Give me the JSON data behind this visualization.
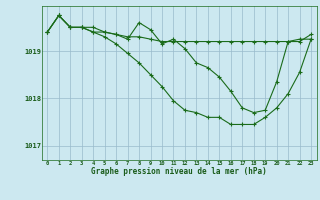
{
  "bg_color": "#cce8f0",
  "plot_bg_color": "#cce8f0",
  "grid_color": "#99bbcc",
  "line_color": "#1a6b1a",
  "marker_color": "#1a6b1a",
  "xlabel": "Graphe pression niveau de la mer (hPa)",
  "xlabel_color": "#1a5c1a",
  "xlim": [
    -0.5,
    23.5
  ],
  "ylim": [
    1016.7,
    1019.95
  ],
  "yticks": [
    1017,
    1018,
    1019
  ],
  "xticks": [
    0,
    1,
    2,
    3,
    4,
    5,
    6,
    7,
    8,
    9,
    10,
    11,
    12,
    13,
    14,
    15,
    16,
    17,
    18,
    19,
    20,
    21,
    22,
    23
  ],
  "series1_x": [
    0,
    1,
    2,
    3,
    4,
    5,
    6,
    7,
    8,
    9,
    10,
    11,
    12,
    13,
    14,
    15,
    16,
    17,
    18,
    19,
    20,
    21,
    22,
    23
  ],
  "series1_y": [
    1019.4,
    1019.75,
    1019.5,
    1019.5,
    1019.5,
    1019.4,
    1019.35,
    1019.3,
    1019.3,
    1019.25,
    1019.2,
    1019.2,
    1019.2,
    1019.2,
    1019.2,
    1019.2,
    1019.2,
    1019.2,
    1019.2,
    1019.2,
    1019.2,
    1019.2,
    1019.2,
    1019.35
  ],
  "series2_x": [
    0,
    1,
    2,
    3,
    4,
    5,
    6,
    7,
    8,
    9,
    10,
    11,
    12,
    13,
    14,
    15,
    16,
    17,
    18,
    19,
    20,
    21,
    22,
    23
  ],
  "series2_y": [
    1019.4,
    1019.75,
    1019.5,
    1019.5,
    1019.4,
    1019.4,
    1019.35,
    1019.25,
    1019.6,
    1019.45,
    1019.15,
    1019.25,
    1019.05,
    1018.75,
    1018.65,
    1018.45,
    1018.15,
    1017.8,
    1017.7,
    1017.75,
    1018.35,
    1019.2,
    1019.25,
    1019.25
  ],
  "series3_x": [
    0,
    1,
    2,
    3,
    4,
    5,
    6,
    7,
    8,
    9,
    10,
    11,
    12,
    13,
    14,
    15,
    16,
    17,
    18,
    19,
    20,
    21,
    22,
    23
  ],
  "series3_y": [
    1019.4,
    1019.75,
    1019.5,
    1019.5,
    1019.4,
    1019.3,
    1019.15,
    1018.95,
    1018.75,
    1018.5,
    1018.25,
    1017.95,
    1017.75,
    1017.7,
    1017.6,
    1017.6,
    1017.45,
    1017.45,
    1017.45,
    1017.6,
    1017.8,
    1018.1,
    1018.55,
    1019.25
  ],
  "title_color": "#1a5c1a",
  "marker_size": 3,
  "line_width": 0.8
}
